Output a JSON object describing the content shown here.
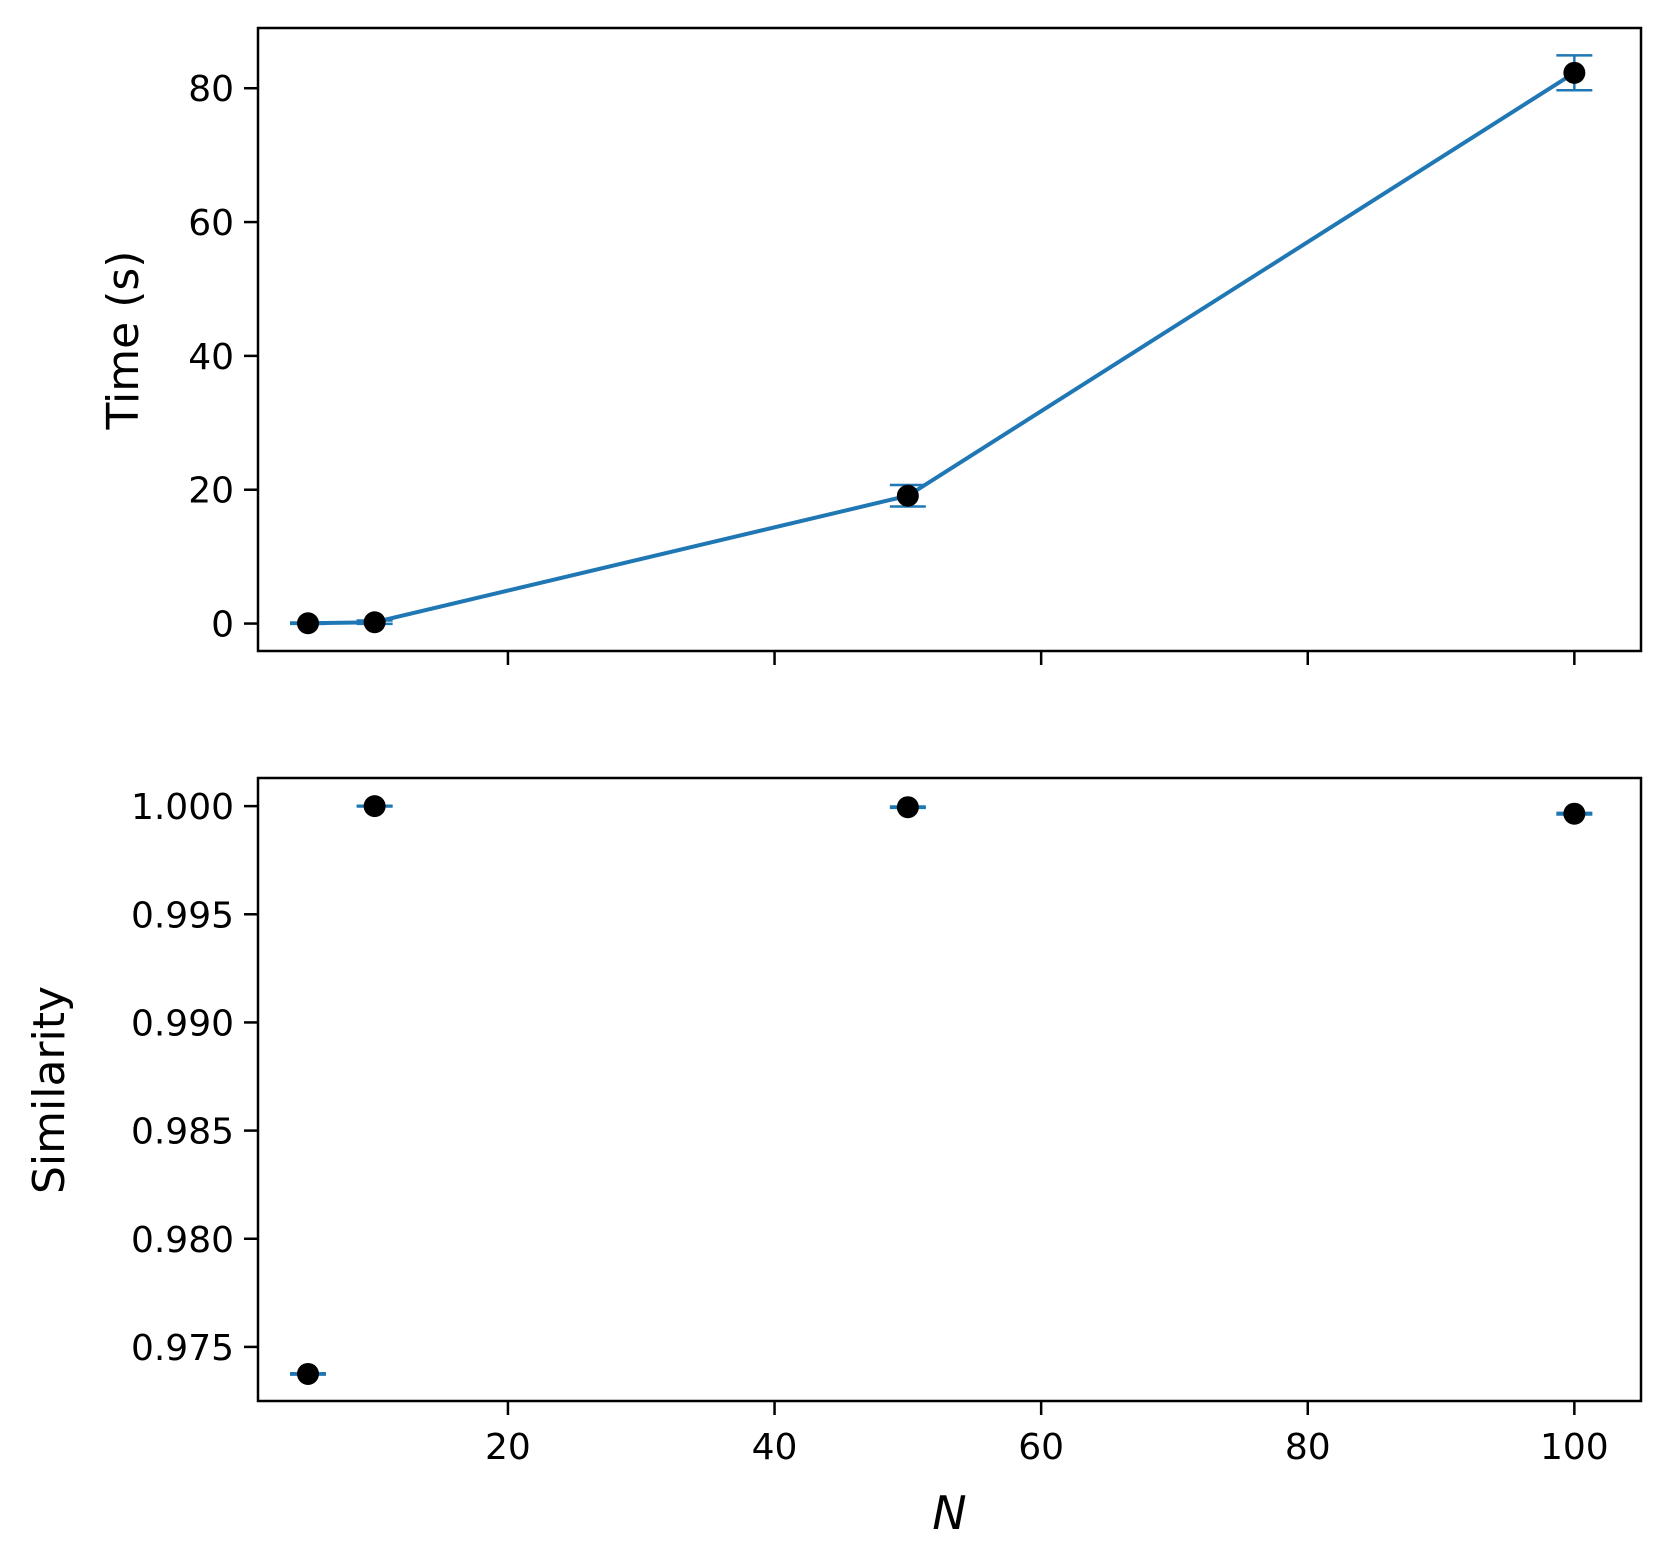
{
  "colors": {
    "line": "#1f77b4",
    "marker": "#000000",
    "frame": "#000000",
    "background": "#ffffff"
  },
  "chart_data": [
    {
      "type": "line",
      "panel": "top",
      "title": "",
      "xlabel": "",
      "ylabel": "Time (s)",
      "xlim": [
        1.25,
        105
      ],
      "ylim": [
        -4.1,
        89
      ],
      "x_ticks": [
        20,
        40,
        60,
        80,
        100
      ],
      "x_tick_labels_shown": false,
      "y_ticks": [
        0,
        20,
        40,
        60,
        80
      ],
      "y_tick_labels": [
        "0",
        "20",
        "40",
        "60",
        "80"
      ],
      "grid": false,
      "series": [
        {
          "x": [
            5,
            10,
            50,
            100
          ],
          "y": [
            0.05,
            0.2,
            19.1,
            82.3
          ],
          "yerr": [
            0.1,
            0.25,
            1.6,
            2.6
          ]
        }
      ]
    },
    {
      "type": "scatter",
      "panel": "bottom",
      "title": "",
      "xlabel": "N",
      "ylabel": "Similarity",
      "xlim": [
        1.25,
        105
      ],
      "ylim": [
        0.9725,
        1.0013
      ],
      "x_ticks": [
        20,
        40,
        60,
        80,
        100
      ],
      "x_tick_labels": [
        "20",
        "40",
        "60",
        "80",
        "100"
      ],
      "y_ticks": [
        0.975,
        0.98,
        0.985,
        0.99,
        0.995,
        1.0
      ],
      "y_tick_labels": [
        "0.975",
        "0.980",
        "0.985",
        "0.990",
        "0.995",
        "1.000"
      ],
      "grid": false,
      "series": [
        {
          "x": [
            5,
            10,
            50,
            100
          ],
          "y": [
            0.97375,
            1.0,
            0.99995,
            0.99965
          ],
          "yerr": [
            3e-05,
            2e-05,
            3e-05,
            4e-05
          ]
        }
      ]
    }
  ]
}
